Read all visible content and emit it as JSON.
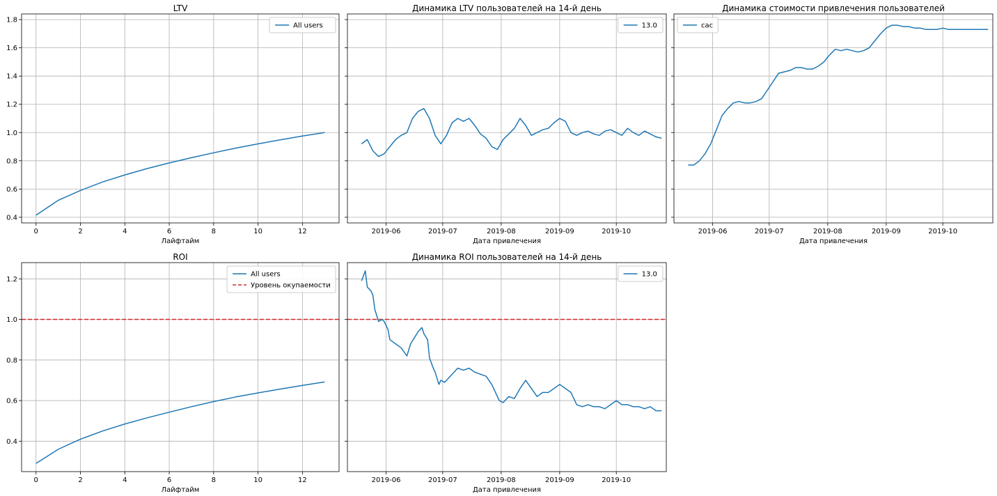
{
  "colors": {
    "line": "#1f77b4",
    "breakeven": "#d62728",
    "grid": "#b0b0b0",
    "frame": "#000000"
  },
  "chart_data": [
    {
      "type": "line",
      "title": "LTV",
      "xlabel": "Лайфтайм",
      "ylabel": "",
      "xlim": [
        -0.65,
        13.65
      ],
      "ylim": [
        0.36,
        1.84
      ],
      "xticks": [
        0,
        2,
        4,
        6,
        8,
        10,
        12
      ],
      "xtick_labels": [
        "0",
        "2",
        "4",
        "6",
        "8",
        "10",
        "12"
      ],
      "yticks": [
        0.4,
        0.6,
        0.8,
        1.0,
        1.2,
        1.4,
        1.6,
        1.8
      ],
      "ytick_labels": [
        "0.4",
        "0.6",
        "0.8",
        "1.0",
        "1.2",
        "1.4",
        "1.6",
        "1.8"
      ],
      "grid": true,
      "legend_position": "upper right",
      "series": [
        {
          "name": "All users",
          "style": "solid",
          "x": [
            0,
            1,
            2,
            3,
            4,
            5,
            6,
            7,
            8,
            9,
            10,
            11,
            12,
            13
          ],
          "y": [
            0.415,
            0.52,
            0.59,
            0.65,
            0.7,
            0.745,
            0.785,
            0.822,
            0.857,
            0.89,
            0.92,
            0.948,
            0.975,
            1.0
          ]
        }
      ]
    },
    {
      "type": "line",
      "title": "Динамика LTV пользователей на 14-й день",
      "xlabel": "Дата привлечения",
      "ylabel": "",
      "xlim": [
        10.5,
        179.5
      ],
      "ylim": [
        0.36,
        1.84
      ],
      "xticks": [
        31,
        61,
        92,
        123,
        153
      ],
      "xtick_labels": [
        "2019-06",
        "2019-07",
        "2019-08",
        "2019-09",
        "2019-10"
      ],
      "yticks": [
        0.4,
        0.6,
        0.8,
        1.0,
        1.2,
        1.4,
        1.6,
        1.8
      ],
      "ytick_labels": [],
      "grid": true,
      "legend_position": "upper right",
      "series": [
        {
          "name": "13.0",
          "style": "solid",
          "x": [
            18,
            21,
            24,
            27,
            30,
            33,
            36,
            39,
            42,
            45,
            48,
            51,
            54,
            57,
            60,
            63,
            66,
            69,
            72,
            75,
            78,
            81,
            84,
            87,
            90,
            93,
            96,
            99,
            102,
            105,
            108,
            111,
            114,
            117,
            120,
            123,
            126,
            129,
            132,
            135,
            138,
            141,
            144,
            147,
            150,
            153,
            156,
            159,
            162,
            165,
            168,
            171,
            174,
            177
          ],
          "y": [
            0.92,
            0.95,
            0.87,
            0.83,
            0.85,
            0.9,
            0.95,
            0.98,
            1.0,
            1.1,
            1.15,
            1.17,
            1.1,
            0.98,
            0.92,
            0.98,
            1.07,
            1.1,
            1.08,
            1.1,
            1.05,
            0.99,
            0.96,
            0.9,
            0.88,
            0.95,
            0.99,
            1.03,
            1.1,
            1.05,
            0.98,
            1.0,
            1.02,
            1.03,
            1.07,
            1.1,
            1.08,
            1.0,
            0.98,
            1.0,
            1.01,
            0.99,
            0.98,
            1.01,
            1.02,
            1.0,
            0.98,
            1.03,
            1.0,
            0.98,
            1.01,
            0.99,
            0.97,
            0.96
          ]
        }
      ]
    },
    {
      "type": "line",
      "title": "Динамика стоимости привлечения пользователей",
      "xlabel": "Дата привлечения",
      "ylabel": "",
      "xlim": [
        10.5,
        179.5
      ],
      "ylim": [
        0.36,
        1.84
      ],
      "xticks": [
        31,
        61,
        92,
        123,
        153
      ],
      "xtick_labels": [
        "2019-06",
        "2019-07",
        "2019-08",
        "2019-09",
        "2019-10"
      ],
      "yticks": [
        0.4,
        0.6,
        0.8,
        1.0,
        1.2,
        1.4,
        1.6,
        1.8
      ],
      "ytick_labels": [],
      "grid": true,
      "legend_position": "upper left",
      "series": [
        {
          "name": "cac",
          "style": "solid",
          "x": [
            18,
            21,
            24,
            27,
            30,
            33,
            36,
            39,
            42,
            45,
            48,
            51,
            54,
            57,
            60,
            63,
            66,
            69,
            72,
            75,
            78,
            81,
            84,
            87,
            90,
            93,
            96,
            99,
            102,
            105,
            108,
            111,
            114,
            117,
            120,
            123,
            126,
            129,
            132,
            135,
            138,
            141,
            144,
            147,
            150,
            153,
            156,
            159,
            162,
            165,
            168,
            171,
            174,
            177
          ],
          "y": [
            0.77,
            0.77,
            0.8,
            0.85,
            0.92,
            1.02,
            1.12,
            1.17,
            1.21,
            1.22,
            1.21,
            1.21,
            1.22,
            1.24,
            1.3,
            1.36,
            1.42,
            1.43,
            1.44,
            1.46,
            1.46,
            1.45,
            1.45,
            1.47,
            1.5,
            1.55,
            1.59,
            1.58,
            1.59,
            1.58,
            1.57,
            1.58,
            1.6,
            1.65,
            1.7,
            1.74,
            1.76,
            1.76,
            1.75,
            1.75,
            1.74,
            1.74,
            1.73,
            1.73,
            1.73,
            1.74,
            1.73,
            1.73,
            1.73,
            1.73,
            1.73,
            1.73,
            1.73,
            1.73
          ]
        }
      ]
    },
    {
      "type": "line",
      "title": "ROI",
      "xlabel": "Лайфтайм",
      "ylabel": "",
      "xlim": [
        -0.65,
        13.65
      ],
      "ylim": [
        0.25,
        1.28
      ],
      "xticks": [
        0,
        2,
        4,
        6,
        8,
        10,
        12
      ],
      "xtick_labels": [
        "0",
        "2",
        "4",
        "6",
        "8",
        "10",
        "12"
      ],
      "yticks": [
        0.4,
        0.6,
        0.8,
        1.0,
        1.2
      ],
      "ytick_labels": [
        "0.4",
        "0.6",
        "0.8",
        "1.0",
        "1.2"
      ],
      "grid": true,
      "legend_position": "upper right",
      "hline": {
        "y": 1.0
      },
      "series": [
        {
          "name": "All users",
          "style": "solid",
          "x": [
            0,
            1,
            2,
            3,
            4,
            5,
            6,
            7,
            8,
            9,
            10,
            11,
            12,
            13
          ],
          "y": [
            0.29,
            0.36,
            0.41,
            0.45,
            0.485,
            0.515,
            0.543,
            0.57,
            0.595,
            0.618,
            0.638,
            0.657,
            0.675,
            0.692
          ]
        },
        {
          "name": "Уровень окупаемости",
          "style": "dashed",
          "x": [],
          "y": []
        }
      ]
    },
    {
      "type": "line",
      "title": "Динамика ROI пользователей на 14-й день",
      "xlabel": "Дата привлечения",
      "ylabel": "",
      "xlim": [
        10.5,
        179.5
      ],
      "ylim": [
        0.25,
        1.28
      ],
      "xticks": [
        31,
        61,
        92,
        123,
        153
      ],
      "xtick_labels": [
        "2019-06",
        "2019-07",
        "2019-08",
        "2019-09",
        "2019-10"
      ],
      "yticks": [
        0.4,
        0.6,
        0.8,
        1.0,
        1.2
      ],
      "ytick_labels": [],
      "grid": true,
      "legend_position": "upper right",
      "hline": {
        "y": 1.0
      },
      "series": [
        {
          "name": "13.0",
          "style": "solid",
          "x": [
            18,
            20,
            21,
            23,
            24,
            25,
            27,
            29,
            30,
            32,
            33,
            36,
            39,
            42,
            44,
            46,
            48,
            50,
            51,
            53,
            54,
            56,
            57,
            59,
            60,
            62,
            66,
            69,
            72,
            75,
            78,
            81,
            84,
            87,
            90,
            91,
            93,
            96,
            99,
            102,
            105,
            108,
            111,
            114,
            117,
            120,
            123,
            126,
            129,
            132,
            135,
            138,
            141,
            144,
            147,
            150,
            153,
            156,
            159,
            162,
            165,
            168,
            171,
            174,
            177
          ],
          "y": [
            1.19,
            1.24,
            1.16,
            1.14,
            1.12,
            1.05,
            0.99,
            1.0,
            0.99,
            0.95,
            0.9,
            0.88,
            0.86,
            0.82,
            0.88,
            0.91,
            0.94,
            0.96,
            0.93,
            0.9,
            0.81,
            0.76,
            0.74,
            0.68,
            0.7,
            0.69,
            0.73,
            0.76,
            0.75,
            0.76,
            0.74,
            0.73,
            0.72,
            0.68,
            0.62,
            0.6,
            0.59,
            0.62,
            0.61,
            0.66,
            0.7,
            0.66,
            0.62,
            0.64,
            0.64,
            0.66,
            0.68,
            0.66,
            0.64,
            0.58,
            0.57,
            0.58,
            0.57,
            0.57,
            0.56,
            0.58,
            0.6,
            0.58,
            0.58,
            0.57,
            0.57,
            0.56,
            0.57,
            0.55,
            0.55
          ]
        }
      ]
    }
  ]
}
